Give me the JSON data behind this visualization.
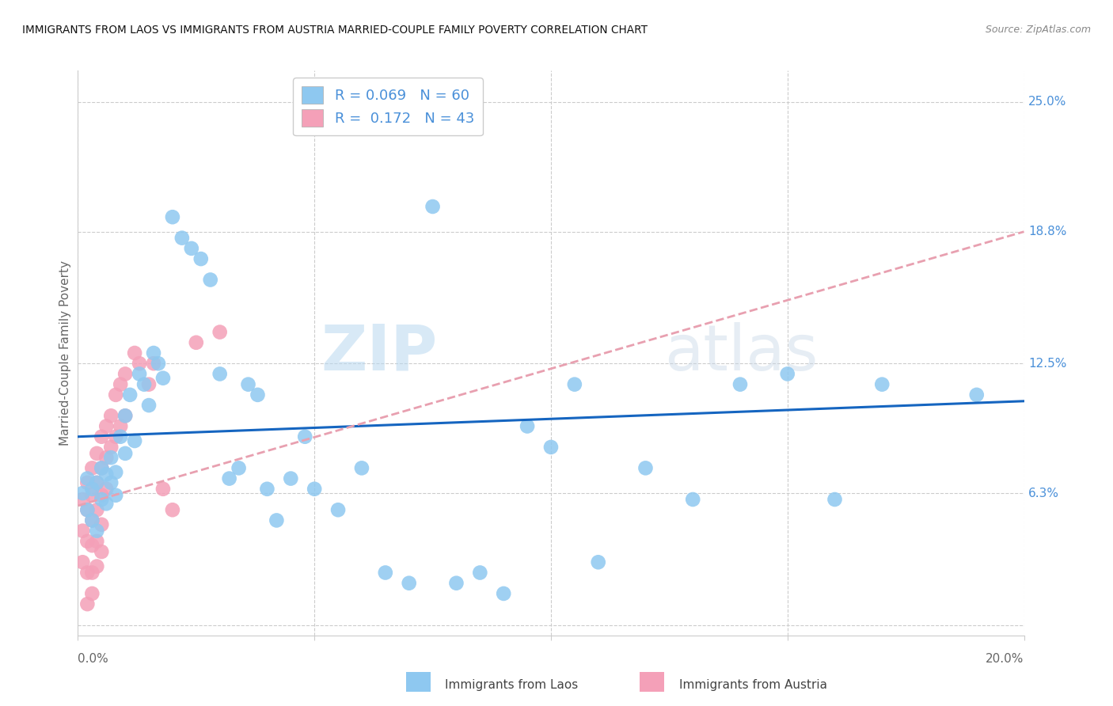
{
  "title": "IMMIGRANTS FROM LAOS VS IMMIGRANTS FROM AUSTRIA MARRIED-COUPLE FAMILY POVERTY CORRELATION CHART",
  "source": "Source: ZipAtlas.com",
  "ylabel": "Married-Couple Family Poverty",
  "ytick_vals": [
    0.0,
    0.063,
    0.125,
    0.188,
    0.25
  ],
  "ytick_labels": [
    "",
    "6.3%",
    "12.5%",
    "18.8%",
    "25.0%"
  ],
  "xtick_vals": [
    0.0,
    0.05,
    0.1,
    0.15,
    0.2
  ],
  "xmin": 0.0,
  "xmax": 0.2,
  "ymin": -0.005,
  "ymax": 0.265,
  "laos_color": "#8EC8F0",
  "austria_color": "#F4A0B8",
  "laos_line_color": "#1565C0",
  "austria_line_color": "#E8A0B0",
  "laos_R": 0.069,
  "laos_N": 60,
  "austria_R": 0.172,
  "austria_N": 43,
  "watermark_zip": "ZIP",
  "watermark_atlas": "atlas",
  "laos_x": [
    0.001,
    0.002,
    0.002,
    0.003,
    0.003,
    0.004,
    0.004,
    0.005,
    0.005,
    0.006,
    0.006,
    0.007,
    0.007,
    0.008,
    0.008,
    0.009,
    0.01,
    0.01,
    0.011,
    0.012,
    0.013,
    0.014,
    0.015,
    0.016,
    0.017,
    0.018,
    0.02,
    0.022,
    0.024,
    0.026,
    0.028,
    0.03,
    0.032,
    0.034,
    0.036,
    0.038,
    0.04,
    0.042,
    0.045,
    0.048,
    0.05,
    0.055,
    0.06,
    0.065,
    0.07,
    0.075,
    0.08,
    0.085,
    0.09,
    0.095,
    0.1,
    0.105,
    0.11,
    0.12,
    0.13,
    0.14,
    0.15,
    0.16,
    0.17,
    0.19
  ],
  "laos_y": [
    0.063,
    0.07,
    0.055,
    0.065,
    0.05,
    0.068,
    0.045,
    0.075,
    0.06,
    0.058,
    0.072,
    0.068,
    0.08,
    0.073,
    0.062,
    0.09,
    0.1,
    0.082,
    0.11,
    0.088,
    0.12,
    0.115,
    0.105,
    0.13,
    0.125,
    0.118,
    0.195,
    0.185,
    0.18,
    0.175,
    0.165,
    0.12,
    0.07,
    0.075,
    0.115,
    0.11,
    0.065,
    0.05,
    0.07,
    0.09,
    0.065,
    0.055,
    0.075,
    0.025,
    0.02,
    0.2,
    0.02,
    0.025,
    0.015,
    0.095,
    0.085,
    0.115,
    0.03,
    0.075,
    0.06,
    0.115,
    0.12,
    0.06,
    0.115,
    0.11
  ],
  "austria_x": [
    0.001,
    0.001,
    0.001,
    0.002,
    0.002,
    0.002,
    0.002,
    0.002,
    0.003,
    0.003,
    0.003,
    0.003,
    0.003,
    0.003,
    0.004,
    0.004,
    0.004,
    0.004,
    0.004,
    0.005,
    0.005,
    0.005,
    0.005,
    0.005,
    0.006,
    0.006,
    0.006,
    0.007,
    0.007,
    0.008,
    0.008,
    0.009,
    0.009,
    0.01,
    0.01,
    0.012,
    0.013,
    0.015,
    0.016,
    0.018,
    0.02,
    0.025,
    0.03
  ],
  "austria_y": [
    0.06,
    0.045,
    0.03,
    0.068,
    0.055,
    0.04,
    0.025,
    0.01,
    0.075,
    0.062,
    0.05,
    0.038,
    0.025,
    0.015,
    0.082,
    0.068,
    0.055,
    0.04,
    0.028,
    0.09,
    0.075,
    0.062,
    0.048,
    0.035,
    0.095,
    0.08,
    0.065,
    0.1,
    0.085,
    0.11,
    0.09,
    0.115,
    0.095,
    0.12,
    0.1,
    0.13,
    0.125,
    0.115,
    0.125,
    0.065,
    0.055,
    0.135,
    0.14
  ],
  "laos_line_x0": 0.0,
  "laos_line_y0": 0.09,
  "laos_line_x1": 0.2,
  "laos_line_y1": 0.107,
  "austria_line_x0": 0.0,
  "austria_line_y0": 0.057,
  "austria_line_x1": 0.2,
  "austria_line_y1": 0.188
}
